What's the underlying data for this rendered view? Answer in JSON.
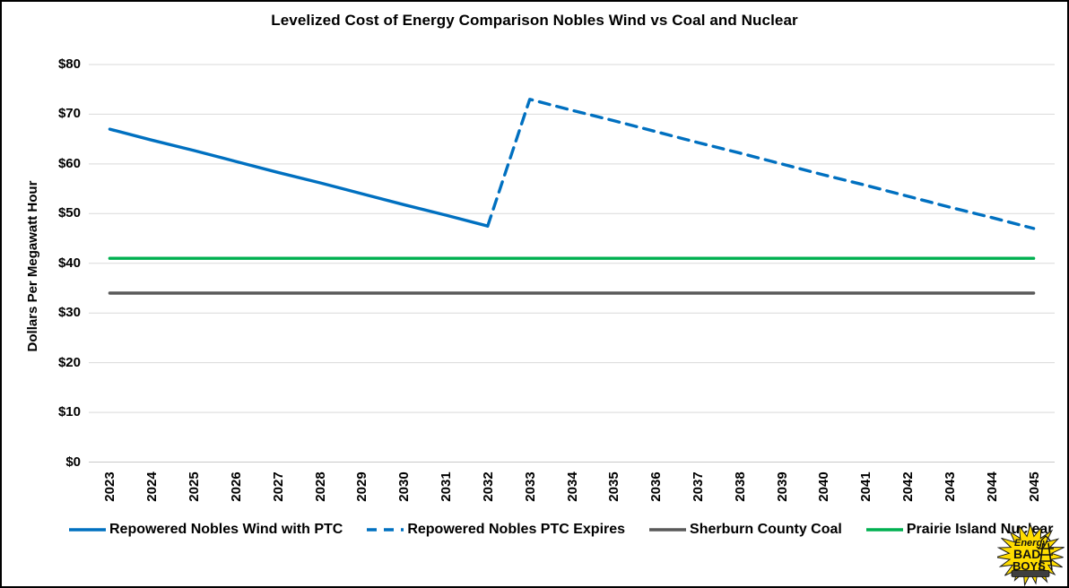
{
  "page": {
    "background": "#FFFFFF",
    "border_color": "#000000"
  },
  "chart_data": {
    "type": "line",
    "title": "Levelized Cost of Energy Comparison Nobles Wind vs Coal and Nuclear",
    "xlabel": "",
    "ylabel": "Dollars Per Megawatt Hour",
    "ylim": [
      0,
      80
    ],
    "grid": "horizontal",
    "legend_position": "bottom",
    "y_ticks": [
      {
        "value": 0,
        "label": "$0"
      },
      {
        "value": 10,
        "label": "$10"
      },
      {
        "value": 20,
        "label": "$20"
      },
      {
        "value": 30,
        "label": "$30"
      },
      {
        "value": 40,
        "label": "$40"
      },
      {
        "value": 50,
        "label": "$50"
      },
      {
        "value": 60,
        "label": "$60"
      },
      {
        "value": 70,
        "label": "$70"
      },
      {
        "value": 80,
        "label": "$80"
      }
    ],
    "categories": [
      "2023",
      "2024",
      "2025",
      "2026",
      "2027",
      "2028",
      "2029",
      "2030",
      "2031",
      "2032",
      "2033",
      "2034",
      "2035",
      "2036",
      "2037",
      "2038",
      "2039",
      "2040",
      "2041",
      "2042",
      "2043",
      "2044",
      "2045"
    ],
    "series": [
      {
        "name": "Repowered Nobles Wind with PTC",
        "color": "#0070C0",
        "style": "solid",
        "values": [
          67,
          64.8,
          62.7,
          60.5,
          58.3,
          56.2,
          54,
          51.8,
          49.7,
          47.5,
          null,
          null,
          null,
          null,
          null,
          null,
          null,
          null,
          null,
          null,
          null,
          null,
          null
        ]
      },
      {
        "name": "Repowered Nobles PTC Expires",
        "color": "#0070C0",
        "style": "dashed",
        "values": [
          null,
          null,
          null,
          null,
          null,
          null,
          null,
          null,
          null,
          47.5,
          73,
          70.8,
          68.7,
          66.5,
          64.3,
          62.2,
          60,
          57.8,
          55.7,
          53.5,
          51.3,
          49.2,
          47
        ]
      },
      {
        "name": "Sherburn County Coal",
        "color": "#595959",
        "style": "solid",
        "values": [
          34,
          34,
          34,
          34,
          34,
          34,
          34,
          34,
          34,
          34,
          34,
          34,
          34,
          34,
          34,
          34,
          34,
          34,
          34,
          34,
          34,
          34,
          34
        ]
      },
      {
        "name": "Prairie Island Nuclear",
        "color": "#00B050",
        "style": "solid",
        "values": [
          41,
          41,
          41,
          41,
          41,
          41,
          41,
          41,
          41,
          41,
          41,
          41,
          41,
          41,
          41,
          41,
          41,
          41,
          41,
          41,
          41,
          41,
          41
        ]
      }
    ]
  },
  "logo": {
    "line1": "Energy",
    "line2": "BAD",
    "line3": "BOYS",
    "star_color": "#FFDD00"
  }
}
